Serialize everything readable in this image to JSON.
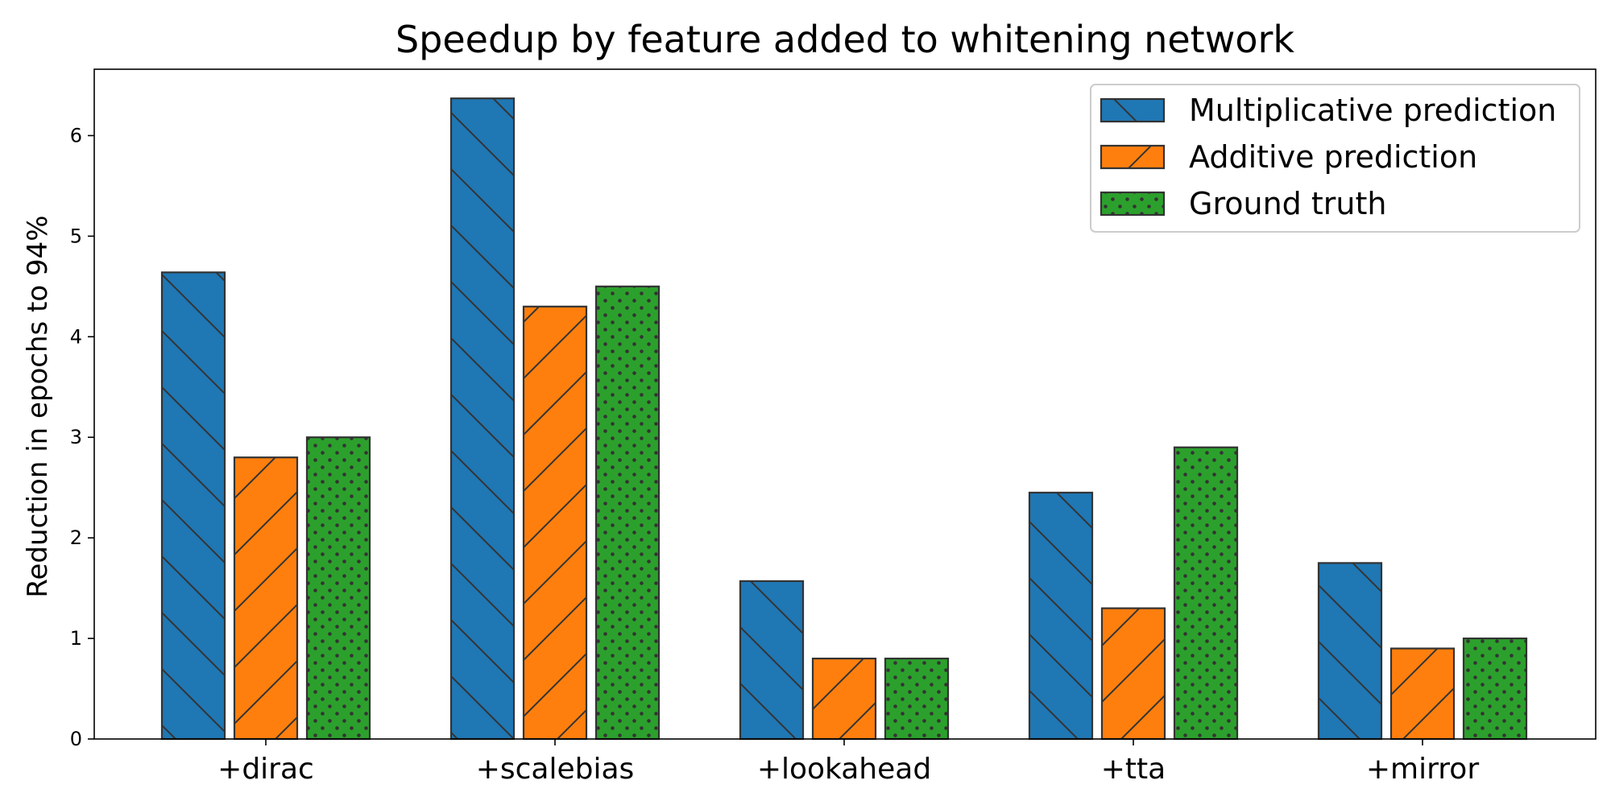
{
  "chart_data": {
    "type": "bar",
    "title": "Speedup by feature added to whitening network",
    "xlabel": "",
    "ylabel": "Reduction in epochs to 94%",
    "ylim": [
      0,
      6.66
    ],
    "yticks": [
      0,
      1,
      2,
      3,
      4,
      5,
      6
    ],
    "categories": [
      "+dirac",
      "+scalebias",
      "+lookahead",
      "+tta",
      "+mirror"
    ],
    "series": [
      {
        "name": "Multiplicative prediction",
        "color": "#1f77b4",
        "hatch": "backslash",
        "values": [
          4.64,
          6.37,
          1.57,
          2.45,
          1.75
        ]
      },
      {
        "name": "Additive prediction",
        "color": "#ff7f0e",
        "hatch": "slash",
        "values": [
          2.8,
          4.3,
          0.8,
          1.3,
          0.9
        ]
      },
      {
        "name": "Ground truth",
        "color": "#2ca02c",
        "hatch": "dots",
        "values": [
          3.0,
          4.5,
          0.8,
          2.9,
          1.0
        ]
      }
    ],
    "legend_position": "top-right",
    "grid": false
  }
}
